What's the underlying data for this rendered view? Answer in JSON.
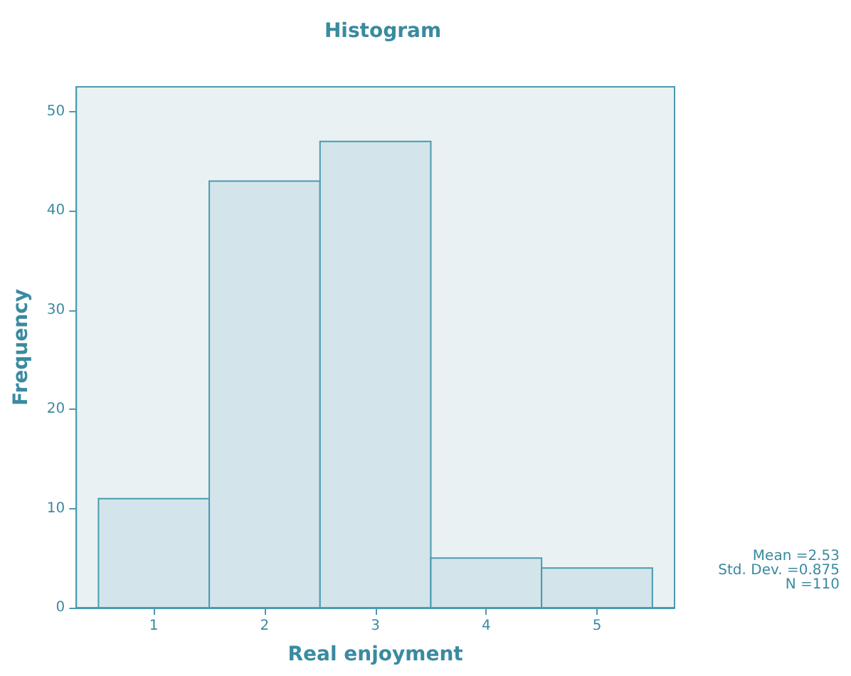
{
  "chart_data": {
    "type": "histogram",
    "title": "Histogram",
    "xlabel": "Real enjoyment",
    "ylabel": "Frequency",
    "bins": [
      0.5,
      1.5,
      2.5,
      3.5,
      4.5,
      5.5
    ],
    "values": [
      11,
      43,
      47,
      5,
      4
    ],
    "color": "#d3e4ea",
    "xlim": [
      0.3,
      5.7
    ],
    "xticks": [
      1,
      2,
      3,
      4,
      5
    ],
    "ylim": [
      0,
      52.5
    ],
    "yticks": [
      0,
      10,
      20,
      30,
      40,
      50
    ],
    "grid": false,
    "annotations": [
      "Mean =2.53",
      "Std. Dev. =0.875",
      "N =110"
    ]
  }
}
